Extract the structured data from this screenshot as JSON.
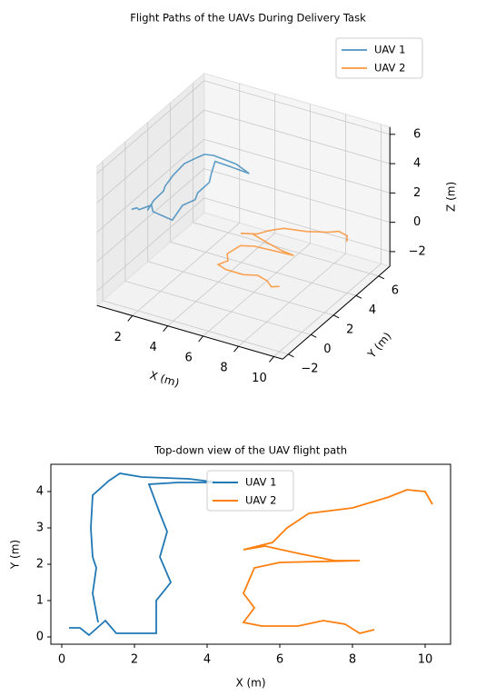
{
  "chart_data": [
    {
      "type": "line3d",
      "title": "Flight Paths of the UAVs During Delivery Task",
      "xlabel": "X (m)",
      "ylabel": "Y (m)",
      "zlabel": "Z (m)",
      "xlim": [
        0,
        10.5
      ],
      "ylim": [
        -2.5,
        7
      ],
      "zlim": [
        -3,
        6.5
      ],
      "xticks": [
        2,
        4,
        6,
        8,
        10
      ],
      "yticks": [
        {
          "value": -2,
          "label": "−2"
        },
        0,
        2,
        4,
        6
      ],
      "zticks": [
        {
          "value": -2,
          "label": "−2"
        },
        0,
        2,
        4,
        6
      ],
      "grid": true,
      "legend": "upper right",
      "series": [
        {
          "name": "UAV 1",
          "color": "#1f77b4",
          "x": [
            0.2,
            0.5,
            0.75,
            1.2,
            1.5,
            2.6,
            2.6,
            3.0,
            2.7,
            2.9,
            2.7,
            2.4,
            3.2,
            4.3,
            3.5,
            2.2,
            1.6,
            1.3,
            0.85,
            0.8,
            0.85,
            0.95,
            0.85,
            1.0
          ],
          "y": [
            0.25,
            0.25,
            0.05,
            0.45,
            0.1,
            0.1,
            1.0,
            1.5,
            2.2,
            2.9,
            3.4,
            4.2,
            4.25,
            4.25,
            4.35,
            4.4,
            4.5,
            4.3,
            3.9,
            3.0,
            2.2,
            1.9,
            1.2,
            0.4
          ],
          "z": [
            1.8,
            2.0,
            2.1,
            2.3,
            2.2,
            2.0,
            2.4,
            2.6,
            2.5,
            2.8,
            3.0,
            3.2,
            3.1,
            3.0,
            3.3,
            3.4,
            3.2,
            3.0,
            2.7,
            2.5,
            2.3,
            2.2,
            2.0,
            1.9
          ]
        },
        {
          "name": "UAV 2",
          "color": "#ff7f0e",
          "x": [
            10.2,
            10.0,
            9.5,
            9.0,
            8.0,
            6.8,
            6.2,
            5.8,
            5.0,
            5.6,
            6.5,
            7.5,
            8.2,
            6.0,
            5.3,
            5.0,
            5.3,
            5.0,
            5.5,
            6.5,
            7.2,
            7.8,
            8.2,
            8.6
          ],
          "y": [
            3.65,
            4.0,
            4.05,
            3.85,
            3.55,
            3.4,
            3.0,
            2.6,
            2.4,
            2.5,
            2.3,
            2.1,
            2.1,
            2.05,
            1.9,
            1.2,
            0.8,
            0.4,
            0.3,
            0.3,
            0.45,
            0.35,
            0.1,
            0.2
          ],
          "z": [
            0.8,
            0.9,
            1.0,
            0.9,
            0.8,
            0.7,
            0.6,
            0.5,
            0.4,
            0.5,
            0.4,
            0.3,
            0.2,
            0.1,
            0.0,
            -0.2,
            -0.3,
            -0.4,
            -0.5,
            -0.5,
            -0.4,
            -0.5,
            -0.6,
            -0.5
          ]
        }
      ]
    },
    {
      "type": "line",
      "title": "Top-down view of the UAV flight path",
      "xlabel": "X (m)",
      "ylabel": "Y (m)",
      "xlim": [
        -0.3,
        10.7
      ],
      "ylim": [
        -0.2,
        4.75
      ],
      "xticks": [
        0,
        2,
        4,
        6,
        8,
        10
      ],
      "yticks": [
        0,
        1,
        2,
        3,
        4
      ],
      "legend": "upper center",
      "series": [
        {
          "name": "UAV 1",
          "color": "#1f77b4",
          "x": [
            0.2,
            0.5,
            0.75,
            1.2,
            1.5,
            2.6,
            2.6,
            3.0,
            2.7,
            2.9,
            2.7,
            2.4,
            3.2,
            4.3,
            3.5,
            2.2,
            1.6,
            1.3,
            0.85,
            0.8,
            0.85,
            0.95,
            0.85,
            1.0
          ],
          "values": [
            0.25,
            0.25,
            0.05,
            0.45,
            0.1,
            0.1,
            1.0,
            1.5,
            2.2,
            2.9,
            3.4,
            4.2,
            4.25,
            4.25,
            4.35,
            4.4,
            4.5,
            4.3,
            3.9,
            3.0,
            2.2,
            1.9,
            1.2,
            0.4
          ]
        },
        {
          "name": "UAV 2",
          "color": "#ff7f0e",
          "x": [
            10.2,
            10.0,
            9.5,
            9.0,
            8.0,
            6.8,
            6.2,
            5.8,
            5.0,
            5.6,
            6.5,
            7.5,
            8.2,
            6.0,
            5.3,
            5.0,
            5.3,
            5.0,
            5.5,
            6.5,
            7.2,
            7.8,
            8.2,
            8.6
          ],
          "values": [
            3.65,
            4.0,
            4.05,
            3.85,
            3.55,
            3.4,
            3.0,
            2.6,
            2.4,
            2.5,
            2.3,
            2.1,
            2.1,
            2.05,
            1.9,
            1.2,
            0.8,
            0.4,
            0.3,
            0.3,
            0.45,
            0.35,
            0.1,
            0.2
          ]
        }
      ]
    }
  ]
}
